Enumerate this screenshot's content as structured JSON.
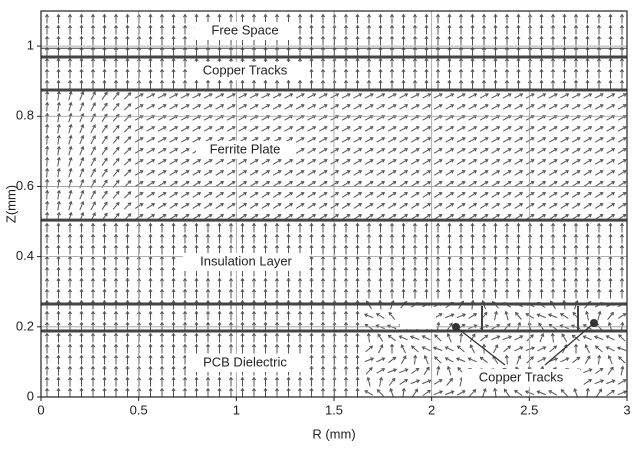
{
  "chart_data": {
    "type": "vector-field",
    "xlabel": "R (mm)",
    "ylabel": "Z(mm)",
    "xlim": [
      0,
      3
    ],
    "xticks": [
      0,
      0.5,
      1,
      1.5,
      2,
      2.5,
      3
    ],
    "ylim": [
      0,
      1.1
    ],
    "yticks": [
      0,
      0.2,
      0.4,
      0.6,
      0.8,
      1
    ],
    "grid": true,
    "layer_boundaries": [
      0.994,
      0.969,
      0.875,
      0.504,
      0.265,
      0.188
    ],
    "annotations": [
      "Free Space",
      "Copper Tracks",
      "Ferrite Plate",
      "Insulation Layer",
      "PCB Dielectric",
      "Copper Tracks"
    ]
  }
}
